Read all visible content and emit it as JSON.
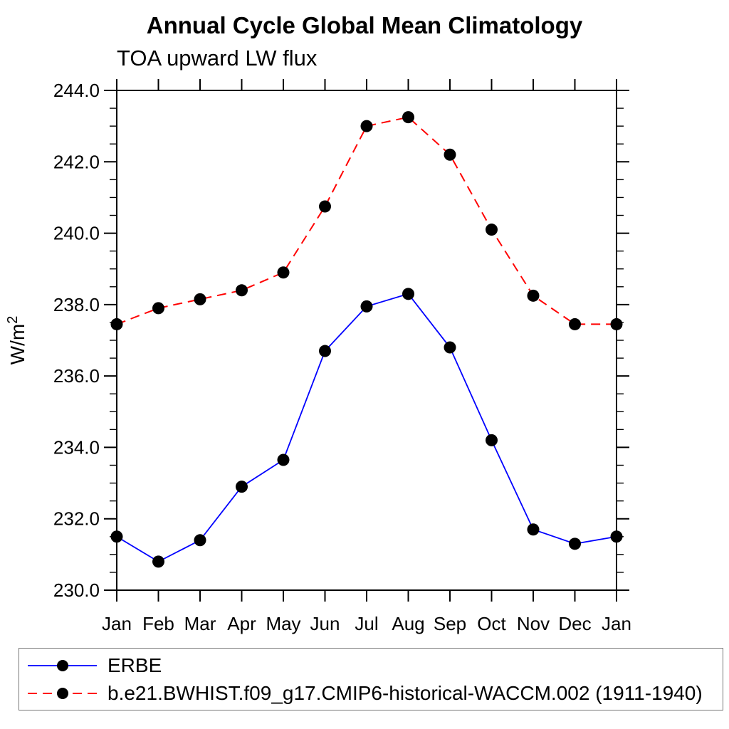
{
  "chart_data": {
    "type": "line",
    "title": "Annual Cycle Global Mean Climatology",
    "subtitle": "TOA upward LW flux",
    "ylabel": "W/m²",
    "xlabel": "",
    "ylim": [
      230.0,
      244.0
    ],
    "ytick_step": 2.0,
    "yminor_step": 0.5,
    "ytick_labels": [
      "230.0",
      "232.0",
      "234.0",
      "236.0",
      "238.0",
      "240.0",
      "242.0",
      "244.0"
    ],
    "categories": [
      "Jan",
      "Feb",
      "Mar",
      "Apr",
      "May",
      "Jun",
      "Jul",
      "Aug",
      "Sep",
      "Oct",
      "Nov",
      "Dec",
      "Jan"
    ],
    "grid": false,
    "legend_position": "bottom box, full width",
    "series": [
      {
        "name": "ERBE",
        "color": "#0000ff",
        "line_style": "solid",
        "marker": "filled-circle",
        "marker_color": "#000000",
        "values": [
          231.5,
          230.8,
          231.4,
          232.9,
          233.65,
          236.7,
          237.95,
          238.3,
          236.8,
          234.2,
          231.7,
          231.3,
          231.5
        ]
      },
      {
        "name": "b.e21.BWHIST.f09_g17.CMIP6-historical-WACCM.002 (1911-1940)",
        "color": "#ff0000",
        "line_style": "dashed",
        "marker": "filled-circle",
        "marker_color": "#000000",
        "values": [
          237.45,
          237.9,
          238.15,
          238.4,
          238.9,
          240.75,
          243.0,
          243.25,
          242.2,
          240.1,
          238.25,
          237.45,
          237.45
        ]
      }
    ]
  },
  "colors": {
    "axis": "#000000",
    "text": "#000000",
    "legend_border": "#777777"
  }
}
